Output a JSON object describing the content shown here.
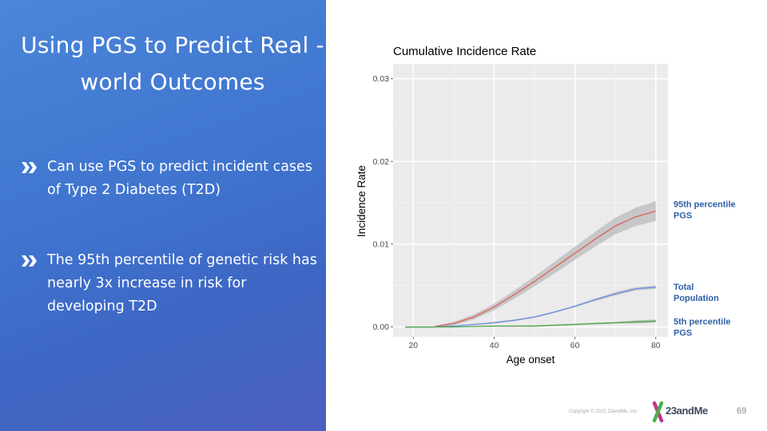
{
  "slide": {
    "title": "Using PGS to Predict Real -world Outcomes",
    "bullets": [
      "Can use PGS to predict incident cases of Type 2 Diabetes (T2D)",
      "The 95th percentile of genetic risk has nearly 3x increase in risk for developing T2D"
    ]
  },
  "footer": {
    "copyright": "Copyright © 2022 23andMe, Inc.",
    "logo_text": "23andMe",
    "page_number": "69"
  },
  "colors": {
    "panel_accent": "#3f74cf",
    "p95": "#e0605a",
    "total": "#6a8fe6",
    "p5": "#4aa84a",
    "band": "#b9b9b9",
    "label_blue": "#2f5fa6"
  },
  "chart_data": {
    "type": "line",
    "title": "Cumulative Incidence Rate",
    "xlabel": "Age onset",
    "ylabel": "Incidence Rate",
    "xlim": [
      15,
      83
    ],
    "ylim": [
      -0.0012,
      0.0318
    ],
    "xticks": [
      20,
      40,
      60,
      80
    ],
    "yticks": [
      0.0,
      0.01,
      0.02,
      0.03
    ],
    "ytick_labels": [
      "0.00",
      "0.01",
      "0.02",
      "0.03"
    ],
    "grid": true,
    "series": [
      {
        "name": "95th percentile PGS",
        "label_lines": [
          "95th percentile",
          "PGS"
        ],
        "color": "#e0605a",
        "x": [
          18,
          20,
          25,
          26,
          30,
          35,
          40,
          45,
          50,
          55,
          60,
          65,
          70,
          75,
          80
        ],
        "y": [
          0.0,
          0.0,
          0.0,
          0.0001,
          0.0004,
          0.0012,
          0.0024,
          0.0039,
          0.0055,
          0.0072,
          0.0089,
          0.0106,
          0.0122,
          0.0133,
          0.014
        ],
        "lower": [
          0.0,
          0.0,
          0.0,
          0.0,
          0.0002,
          0.0009,
          0.002,
          0.0034,
          0.0049,
          0.0065,
          0.0081,
          0.0097,
          0.0112,
          0.0122,
          0.0128
        ],
        "upper": [
          0.0,
          0.0,
          0.0,
          0.0002,
          0.0006,
          0.0015,
          0.0028,
          0.0044,
          0.0061,
          0.0079,
          0.0097,
          0.0115,
          0.0132,
          0.0144,
          0.0152
        ]
      },
      {
        "name": "Total Population",
        "label_lines": [
          "Total",
          "Population"
        ],
        "color": "#6a8fe6",
        "x": [
          18,
          25,
          30,
          35,
          40,
          45,
          50,
          55,
          60,
          65,
          70,
          75,
          80
        ],
        "y": [
          0.0,
          0.0,
          0.0001,
          0.0003,
          0.0005,
          0.0008,
          0.0012,
          0.0018,
          0.0025,
          0.0033,
          0.004,
          0.0046,
          0.0048
        ],
        "lower": [
          0.0,
          0.0,
          0.0001,
          0.0002,
          0.0004,
          0.0007,
          0.0011,
          0.0017,
          0.0024,
          0.0031,
          0.0038,
          0.0044,
          0.0046
        ],
        "upper": [
          0.0,
          0.0,
          0.0001,
          0.0003,
          0.0006,
          0.0009,
          0.0013,
          0.0019,
          0.0026,
          0.0034,
          0.0042,
          0.0048,
          0.005
        ]
      },
      {
        "name": "5th percentile PGS",
        "label_lines": [
          "5th percentile",
          "PGS"
        ],
        "color": "#4aa84a",
        "x": [
          18,
          30,
          40,
          50,
          55,
          60,
          65,
          70,
          75,
          80
        ],
        "y": [
          0.0,
          0.0,
          0.0001,
          0.0001,
          0.0002,
          0.0003,
          0.0004,
          0.0005,
          0.0006,
          0.0007
        ],
        "lower": [
          0.0,
          0.0,
          0.0,
          0.0,
          0.0001,
          0.0002,
          0.0003,
          0.0004,
          0.0004,
          0.0005
        ],
        "upper": [
          0.0,
          0.0,
          0.0001,
          0.0002,
          0.0003,
          0.0004,
          0.0005,
          0.0006,
          0.0008,
          0.0009
        ]
      }
    ]
  }
}
